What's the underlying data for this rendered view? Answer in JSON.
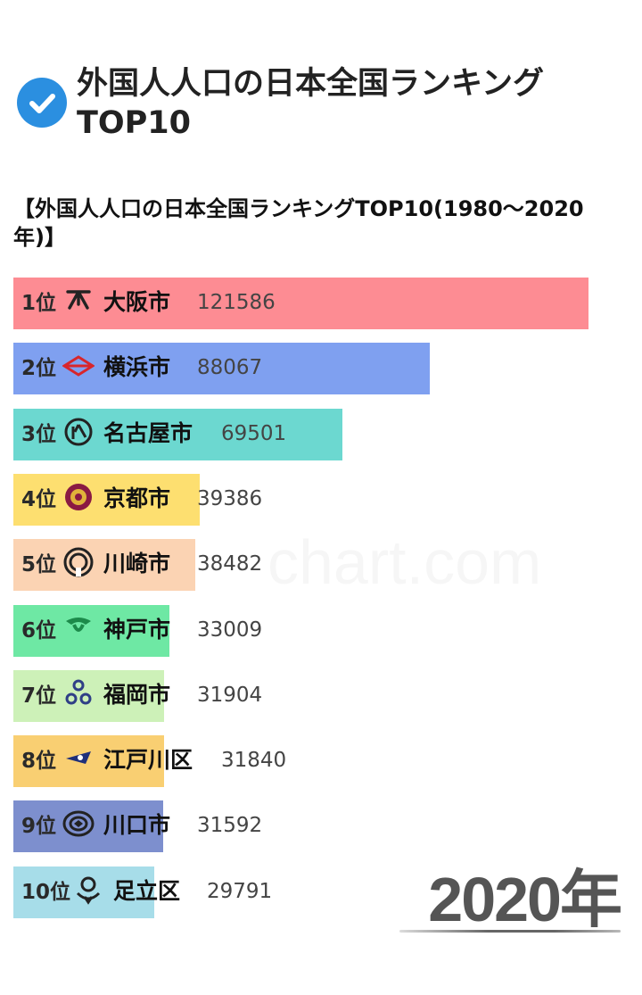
{
  "header": {
    "title_line1": "外国人人口の日本全国ランキング",
    "title_line2": "TOP10"
  },
  "subtitle": "【外国人人口の日本全国ランキングTOP10(1980～2020年)】",
  "watermark": "chart.com",
  "year_label": "2020年",
  "chart_data": {
    "type": "bar",
    "orientation": "horizontal",
    "title": "【外国人人口の日本全国ランキングTOP10(1980～2020年)】",
    "period": "2020年",
    "xlim": [
      0,
      130000
    ],
    "categories": [
      "大阪市",
      "横浜市",
      "名古屋市",
      "京都市",
      "川崎市",
      "神戸市",
      "福岡市",
      "江戸川区",
      "川口市",
      "足立区"
    ],
    "ranks": [
      "1位",
      "2位",
      "3位",
      "4位",
      "5位",
      "6位",
      "7位",
      "8位",
      "9位",
      "10位"
    ],
    "values": [
      121586,
      88067,
      69501,
      39386,
      38482,
      33009,
      31904,
      31840,
      31592,
      29791
    ],
    "colors": [
      "#fd8c93",
      "#7fa0f0",
      "#6cd8d0",
      "#fddf70",
      "#fbd3b3",
      "#6ee8a4",
      "#cdf1b8",
      "#f9cf72",
      "#7d8fce",
      "#a7dde9"
    ],
    "emblems": [
      "osaka-emblem-icon",
      "yokohama-emblem-icon",
      "nagoya-emblem-icon",
      "kyoto-emblem-icon",
      "kawasaki-emblem-icon",
      "kobe-emblem-icon",
      "fukuoka-emblem-icon",
      "edogawa-emblem-icon",
      "kawaguchi-emblem-icon",
      "adachi-emblem-icon"
    ]
  }
}
